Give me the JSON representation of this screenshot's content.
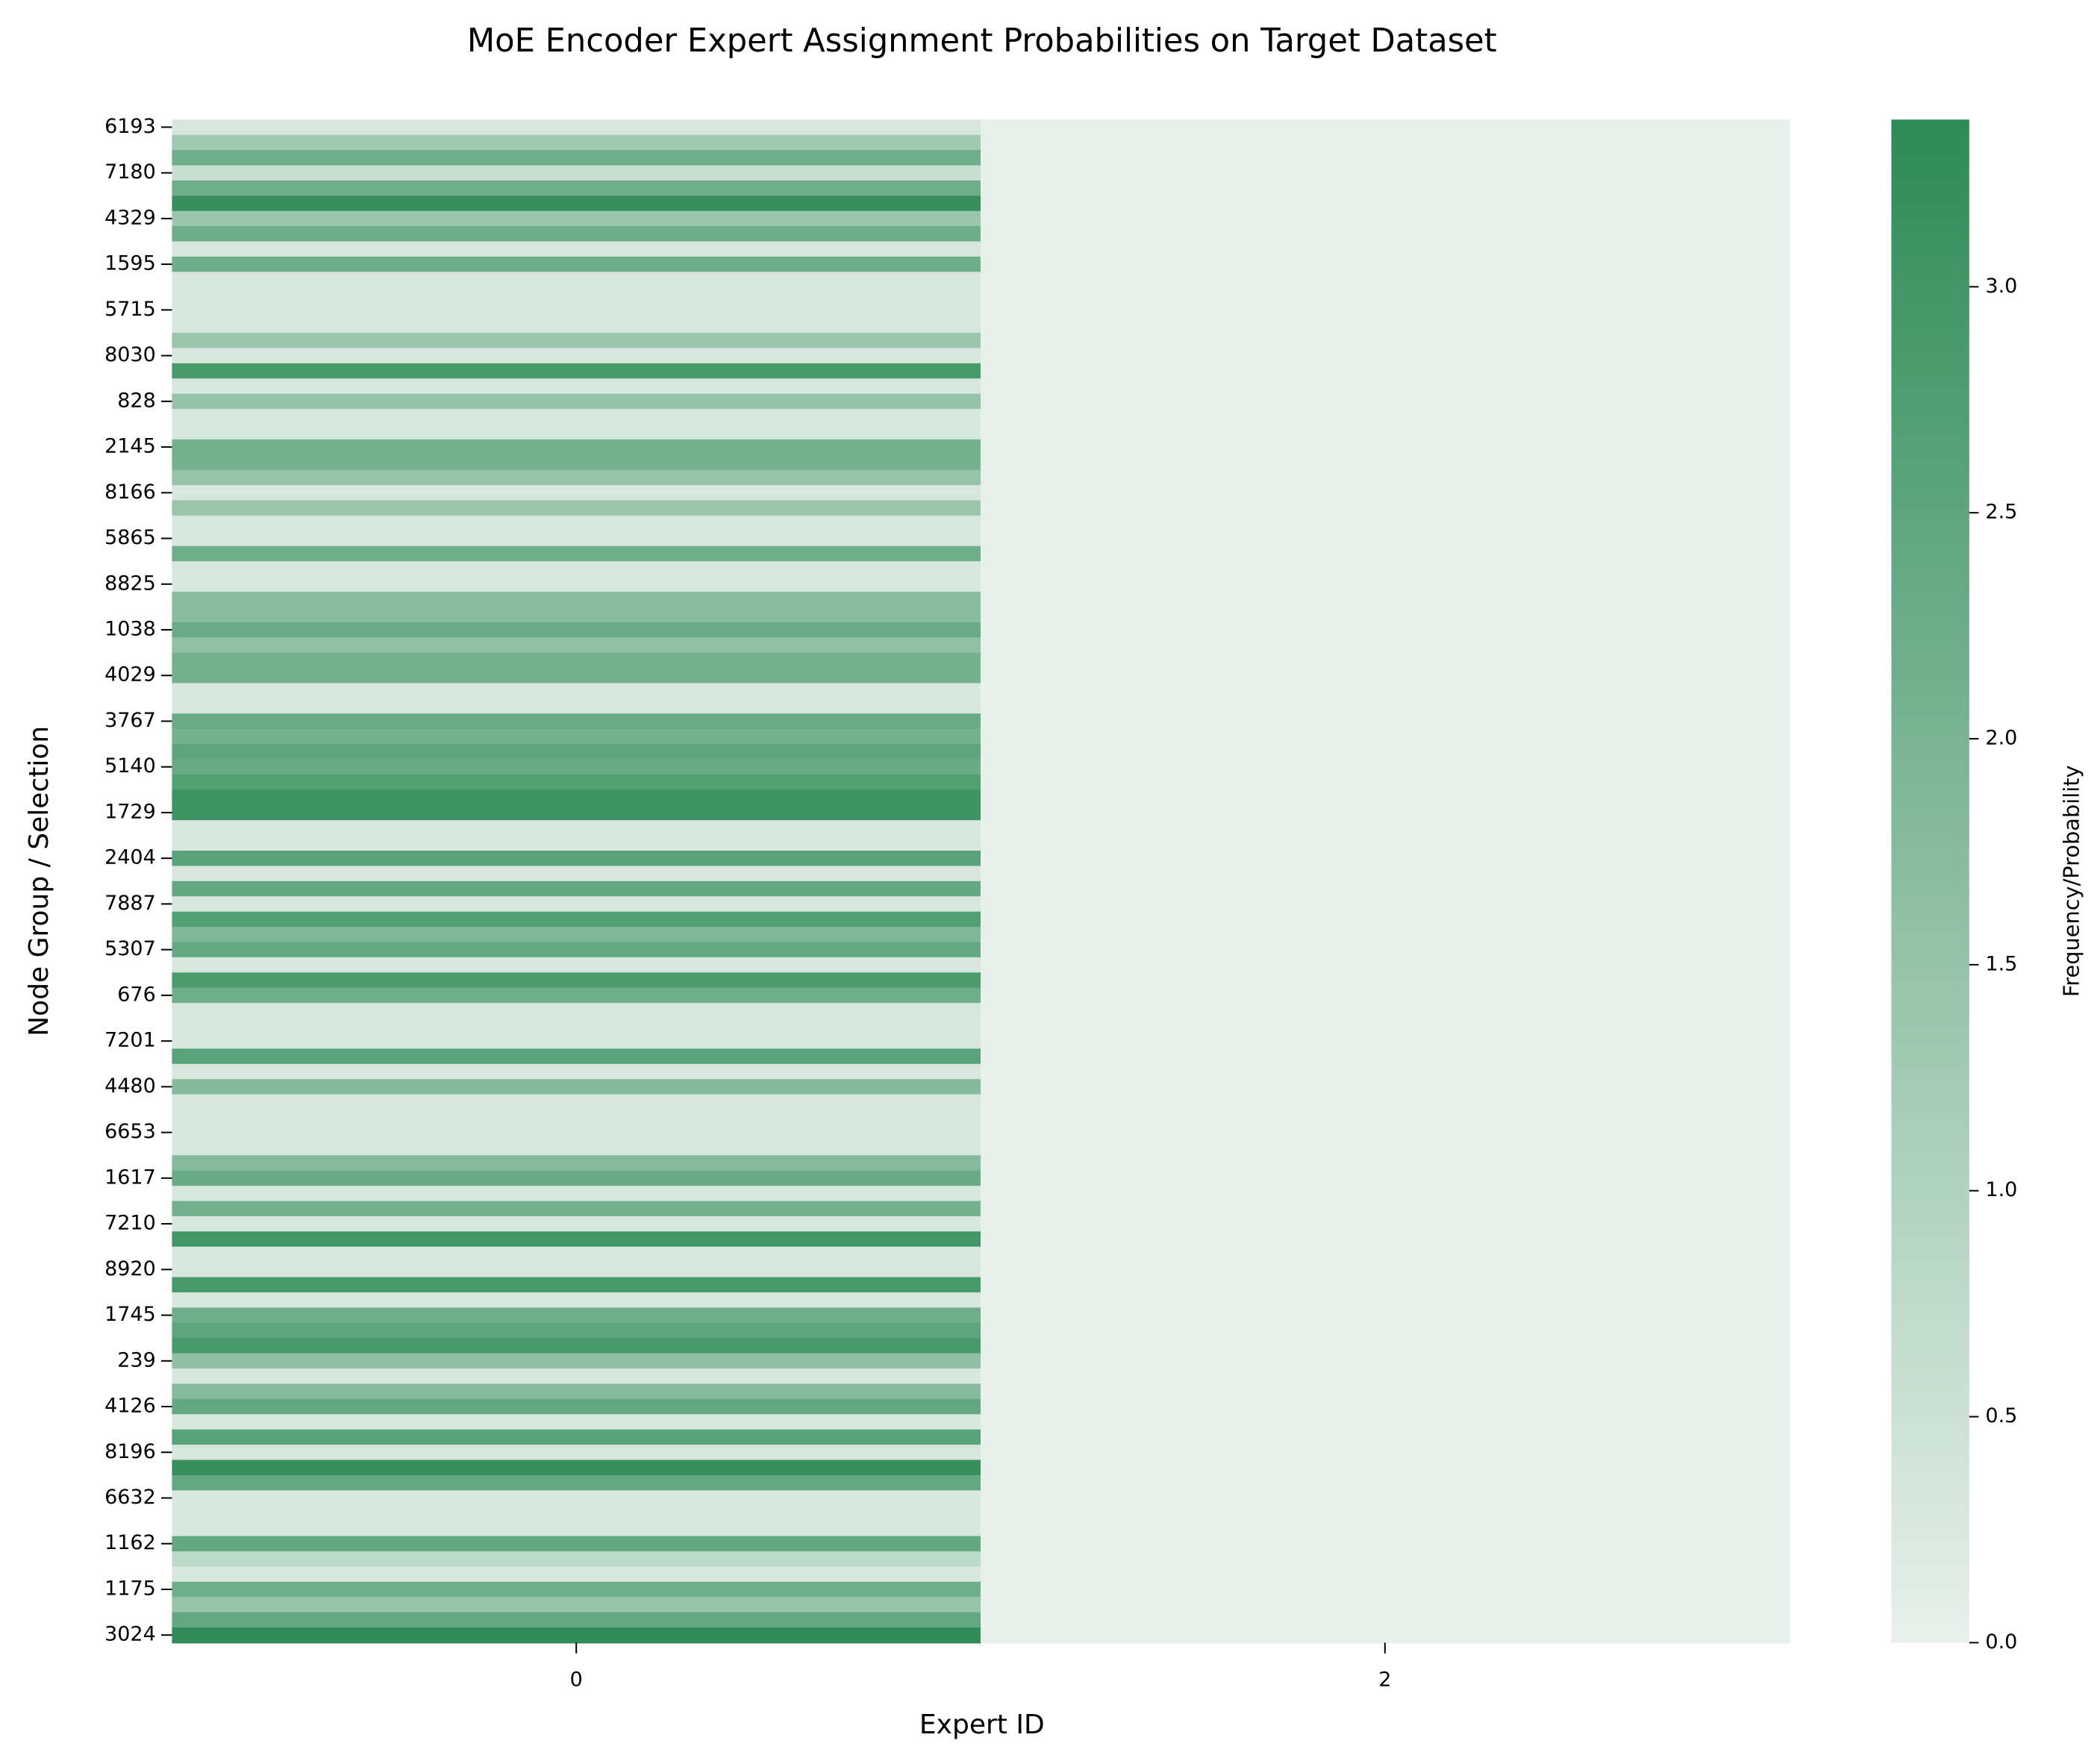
{
  "chart_data": {
    "type": "heatmap",
    "title": "MoE Encoder Expert Assignment Probabilities on Target Dataset",
    "xlabel": "Expert ID",
    "ylabel": "Node Group / Selection",
    "x_categories": [
      "0",
      "2"
    ],
    "y_categories": [
      "6193",
      null,
      null,
      "7180",
      null,
      null,
      "4329",
      null,
      null,
      "1595",
      null,
      null,
      "5715",
      null,
      null,
      "8030",
      null,
      null,
      "828",
      null,
      null,
      "2145",
      null,
      null,
      "8166",
      null,
      null,
      "5865",
      null,
      null,
      "8825",
      null,
      null,
      "1038",
      null,
      null,
      "4029",
      null,
      null,
      "3767",
      null,
      null,
      "5140",
      null,
      null,
      "1729",
      null,
      null,
      "2404",
      null,
      null,
      "7887",
      null,
      null,
      "5307",
      null,
      null,
      "676",
      null,
      null,
      "7201",
      null,
      null,
      "4480",
      null,
      null,
      "6653",
      null,
      null,
      "1617",
      null,
      null,
      "7210",
      null,
      null,
      "8920",
      null,
      null,
      "1745",
      null,
      null,
      "239",
      null,
      null,
      "4126",
      null,
      null,
      "8196",
      null,
      null,
      "6632",
      null,
      null,
      "1162",
      null,
      null,
      "1175",
      null,
      null,
      "3024"
    ],
    "values": [
      [
        0.3,
        0
      ],
      [
        1.3,
        0
      ],
      [
        2.2,
        0
      ],
      [
        0.6,
        0
      ],
      [
        2.2,
        0
      ],
      [
        3.2,
        0
      ],
      [
        1.4,
        0
      ],
      [
        2.2,
        0
      ],
      [
        0.3,
        0
      ],
      [
        2.2,
        0
      ],
      [
        0.3,
        0
      ],
      [
        0.3,
        0
      ],
      [
        0.3,
        0
      ],
      [
        0.3,
        0
      ],
      [
        1.4,
        0
      ],
      [
        0.3,
        0
      ],
      [
        2.9,
        0
      ],
      [
        0.3,
        0
      ],
      [
        1.5,
        0
      ],
      [
        0.3,
        0
      ],
      [
        0.3,
        0
      ],
      [
        2.1,
        0
      ],
      [
        2.1,
        0
      ],
      [
        1.5,
        0
      ],
      [
        0.3,
        0
      ],
      [
        1.4,
        0
      ],
      [
        0.3,
        0
      ],
      [
        0.3,
        0
      ],
      [
        2.2,
        0
      ],
      [
        0.3,
        0
      ],
      [
        0.3,
        0
      ],
      [
        1.7,
        0
      ],
      [
        1.7,
        0
      ],
      [
        2.3,
        0
      ],
      [
        1.6,
        0
      ],
      [
        2.1,
        0
      ],
      [
        2.1,
        0
      ],
      [
        0.3,
        0
      ],
      [
        0.3,
        0
      ],
      [
        2.3,
        0
      ],
      [
        2.1,
        0
      ],
      [
        2.5,
        0
      ],
      [
        2.3,
        0
      ],
      [
        2.7,
        0
      ],
      [
        3.1,
        0
      ],
      [
        3.1,
        0
      ],
      [
        0.3,
        0
      ],
      [
        0.3,
        0
      ],
      [
        2.6,
        0
      ],
      [
        0.3,
        0
      ],
      [
        2.4,
        0
      ],
      [
        0.3,
        0
      ],
      [
        2.7,
        0
      ],
      [
        1.9,
        0
      ],
      [
        2.4,
        0
      ],
      [
        0.3,
        0
      ],
      [
        2.8,
        0
      ],
      [
        2.2,
        0
      ],
      [
        0.3,
        0
      ],
      [
        0.3,
        0
      ],
      [
        0.3,
        0
      ],
      [
        2.6,
        0
      ],
      [
        0.3,
        0
      ],
      [
        1.8,
        0
      ],
      [
        0.3,
        0
      ],
      [
        0.3,
        0
      ],
      [
        0.3,
        0
      ],
      [
        0.3,
        0
      ],
      [
        1.8,
        0
      ],
      [
        2.3,
        0
      ],
      [
        0.3,
        0
      ],
      [
        2.1,
        0
      ],
      [
        0.3,
        0
      ],
      [
        3.0,
        0
      ],
      [
        0.3,
        0
      ],
      [
        0.3,
        0
      ],
      [
        2.9,
        0
      ],
      [
        0.3,
        0
      ],
      [
        2.2,
        0
      ],
      [
        2.5,
        0
      ],
      [
        2.9,
        0
      ],
      [
        1.6,
        0
      ],
      [
        0.3,
        0
      ],
      [
        1.8,
        0
      ],
      [
        2.4,
        0
      ],
      [
        0.3,
        0
      ],
      [
        2.6,
        0
      ],
      [
        0.3,
        0
      ],
      [
        3.2,
        0
      ],
      [
        2.4,
        0
      ],
      [
        0.3,
        0
      ],
      [
        0.3,
        0
      ],
      [
        0.3,
        0
      ],
      [
        2.4,
        0
      ],
      [
        0.8,
        0
      ],
      [
        0.3,
        0
      ],
      [
        2.2,
        0
      ],
      [
        1.5,
        0
      ],
      [
        2.4,
        0
      ],
      [
        3.3,
        0
      ]
    ],
    "colorbar_label": "Frequency/Probability",
    "clim": [
      0,
      3.37
    ],
    "cticks": [
      {
        "value": 0,
        "label": "0.0"
      },
      0.5,
      {
        "value": 1,
        "label": "1.0"
      },
      1.5,
      {
        "value": 2,
        "label": "2.0"
      },
      2.5,
      {
        "value": 3,
        "label": "3.0"
      }
    ],
    "cmap": [
      "#e8f0eb",
      "#2e8b57"
    ]
  }
}
